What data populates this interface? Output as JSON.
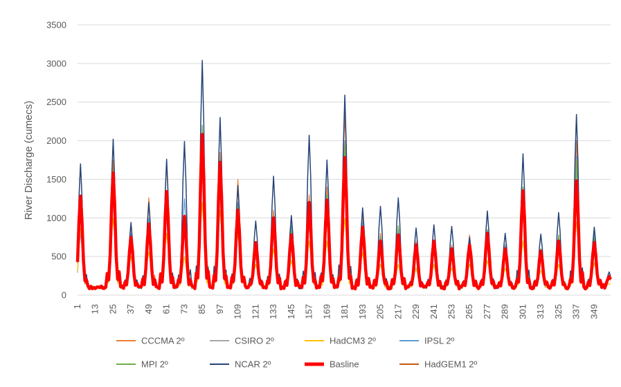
{
  "chart_data": {
    "type": "line",
    "ylabel": "River Discharge (cumecs)",
    "xlabel": "",
    "ylim": [
      0,
      3500
    ],
    "yticks": [
      0,
      500,
      1000,
      1500,
      2000,
      2500,
      3000,
      3500
    ],
    "xlim": [
      1,
      360
    ],
    "xticks": [
      1,
      13,
      25,
      37,
      49,
      61,
      73,
      85,
      97,
      109,
      121,
      133,
      145,
      157,
      169,
      181,
      193,
      205,
      217,
      229,
      241,
      253,
      265,
      277,
      289,
      301,
      313,
      325,
      337,
      349
    ],
    "grid": "horizontal",
    "legend": "bottom",
    "yearly_peaks": {
      "month_index_of_peak": [
        3,
        25,
        37,
        49,
        61,
        73,
        85,
        97,
        109,
        121,
        133,
        145,
        157,
        169,
        181,
        193,
        205,
        217,
        229,
        241,
        253,
        265,
        277,
        289,
        301,
        313,
        325,
        337,
        349,
        359
      ],
      "series_order": [
        "CCCMA 2º",
        "CSIRO 2º",
        "HadCM3 2º",
        "IPSL 2º",
        "MPI  2º",
        "NCAR 2º",
        "Basline",
        "HadGEM1 2º"
      ]
    },
    "series": [
      {
        "name": "CCCMA 2º",
        "color": "#ED7D31",
        "width": 1.2,
        "peaks": [
          1700,
          1750,
          900,
          1260,
          1700,
          1000,
          2000,
          1850,
          1500,
          650,
          1100,
          1000,
          1300,
          1400,
          2350,
          1050,
          800,
          800,
          700,
          700,
          650,
          780,
          800,
          650,
          1400,
          600,
          750,
          2000,
          800,
          250
        ]
      },
      {
        "name": "CSIRO 2º",
        "color": "#A5A5A5",
        "width": 1.2,
        "peaks": [
          800,
          1400,
          700,
          900,
          1200,
          800,
          1800,
          1500,
          1100,
          500,
          900,
          800,
          900,
          1100,
          1900,
          900,
          650,
          800,
          600,
          600,
          600,
          650,
          700,
          600,
          1100,
          550,
          700,
          1600,
          700,
          220
        ]
      },
      {
        "name": "HadCM3 2º",
        "color": "#FFC000",
        "width": 1.2,
        "peaks": [
          870,
          1000,
          500,
          560,
          800,
          500,
          1200,
          1100,
          800,
          400,
          600,
          450,
          700,
          700,
          1000,
          550,
          400,
          400,
          350,
          400,
          350,
          400,
          450,
          350,
          700,
          320,
          400,
          950,
          420,
          150
        ]
      },
      {
        "name": "IPSL 2º",
        "color": "#5B9BD5",
        "width": 1.2,
        "peaks": [
          1300,
          1500,
          800,
          1000,
          1300,
          1250,
          2100,
          1750,
          1200,
          600,
          1000,
          900,
          1100,
          1300,
          2000,
          950,
          750,
          850,
          650,
          650,
          600,
          700,
          850,
          650,
          1400,
          600,
          750,
          1800,
          800,
          250
        ]
      },
      {
        "name": "MPI  2º",
        "color": "#70AD47",
        "width": 1.2,
        "peaks": [
          1250,
          1550,
          750,
          950,
          1300,
          1000,
          2200,
          1750,
          1150,
          620,
          1000,
          850,
          1150,
          1300,
          1950,
          900,
          750,
          900,
          650,
          650,
          600,
          700,
          850,
          620,
          1400,
          600,
          780,
          1750,
          750,
          240
        ]
      },
      {
        "name": "NCAR 2º",
        "color": "#264478",
        "width": 1.5,
        "peaks": [
          1700,
          2020,
          940,
          1200,
          1760,
          1990,
          3040,
          2300,
          1420,
          960,
          1540,
          1030,
          2070,
          1750,
          2590,
          1130,
          1150,
          1260,
          870,
          910,
          890,
          750,
          1090,
          800,
          1830,
          790,
          1070,
          2340,
          880,
          300
        ]
      },
      {
        "name": "Basline",
        "color": "#FF0000",
        "width": 4.5,
        "peaks": [
          1280,
          1580,
          750,
          920,
          1340,
          1020,
          2080,
          1720,
          1100,
          680,
          1000,
          780,
          1200,
          1230,
          1780,
          880,
          700,
          780,
          650,
          700,
          600,
          650,
          800,
          600,
          1350,
          570,
          700,
          1480,
          680,
          240
        ]
      },
      {
        "name": "HadGEM1 2º",
        "color": "#C55A11",
        "width": 1.2,
        "peaks": [
          1200,
          1450,
          700,
          900,
          1200,
          950,
          1900,
          1600,
          1050,
          600,
          950,
          750,
          1100,
          1200,
          1700,
          850,
          650,
          750,
          600,
          650,
          580,
          620,
          750,
          580,
          1250,
          550,
          680,
          1450,
          650,
          230
        ]
      }
    ]
  }
}
